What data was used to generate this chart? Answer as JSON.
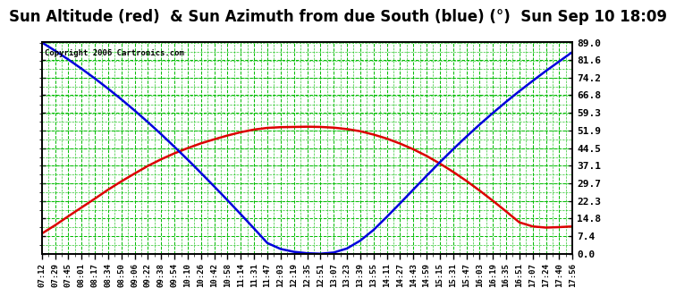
{
  "title": "Sun Altitude (red)  & Sun Azimuth from due South (blue) (°)  Sun Sep 10 18:09",
  "copyright": "Copyright 2006 Cartronics.com",
  "yticks": [
    0.0,
    7.4,
    14.8,
    22.3,
    29.7,
    37.1,
    44.5,
    51.9,
    59.3,
    66.8,
    74.2,
    81.6,
    89.0
  ],
  "ymin": 0.0,
  "ymax": 89.0,
  "background_color": "#ffffff",
  "plot_bg_color": "#ffffff",
  "grid_color": "#00bb00",
  "line_color_altitude": "#dd0000",
  "line_color_azimuth": "#0000dd",
  "title_fontsize": 12,
  "xtick_labels": [
    "07:12",
    "07:29",
    "07:45",
    "08:01",
    "08:17",
    "08:34",
    "08:50",
    "09:06",
    "09:22",
    "09:38",
    "09:54",
    "10:10",
    "10:26",
    "10:42",
    "10:58",
    "11:14",
    "11:31",
    "11:47",
    "12:03",
    "12:19",
    "12:35",
    "12:51",
    "13:07",
    "13:23",
    "13:39",
    "13:55",
    "14:11",
    "14:27",
    "14:43",
    "14:59",
    "15:15",
    "15:31",
    "15:47",
    "16:03",
    "16:19",
    "16:35",
    "16:51",
    "17:07",
    "17:24",
    "17:40",
    "17:56"
  ],
  "altitude_vals": [
    8.5,
    12.0,
    15.8,
    19.5,
    23.2,
    27.0,
    30.5,
    33.8,
    37.0,
    39.8,
    42.3,
    44.5,
    46.5,
    48.2,
    49.8,
    51.2,
    52.3,
    53.0,
    53.3,
    53.4,
    53.5,
    53.4,
    53.1,
    52.5,
    51.6,
    50.2,
    48.5,
    46.4,
    44.0,
    41.2,
    38.0,
    34.5,
    30.7,
    26.6,
    22.3,
    17.8,
    13.2,
    11.5,
    11.0,
    11.2,
    11.5
  ],
  "azimuth_vals": [
    89.0,
    85.5,
    81.8,
    77.9,
    73.8,
    69.5,
    65.0,
    60.3,
    55.4,
    50.3,
    45.0,
    39.6,
    34.0,
    28.3,
    22.5,
    16.6,
    10.6,
    4.5,
    2.0,
    0.8,
    0.2,
    0.0,
    0.5,
    2.2,
    5.5,
    10.0,
    15.5,
    21.2,
    27.0,
    32.8,
    38.5,
    44.0,
    49.3,
    54.4,
    59.3,
    64.0,
    68.5,
    72.8,
    77.0,
    81.0,
    85.0
  ]
}
